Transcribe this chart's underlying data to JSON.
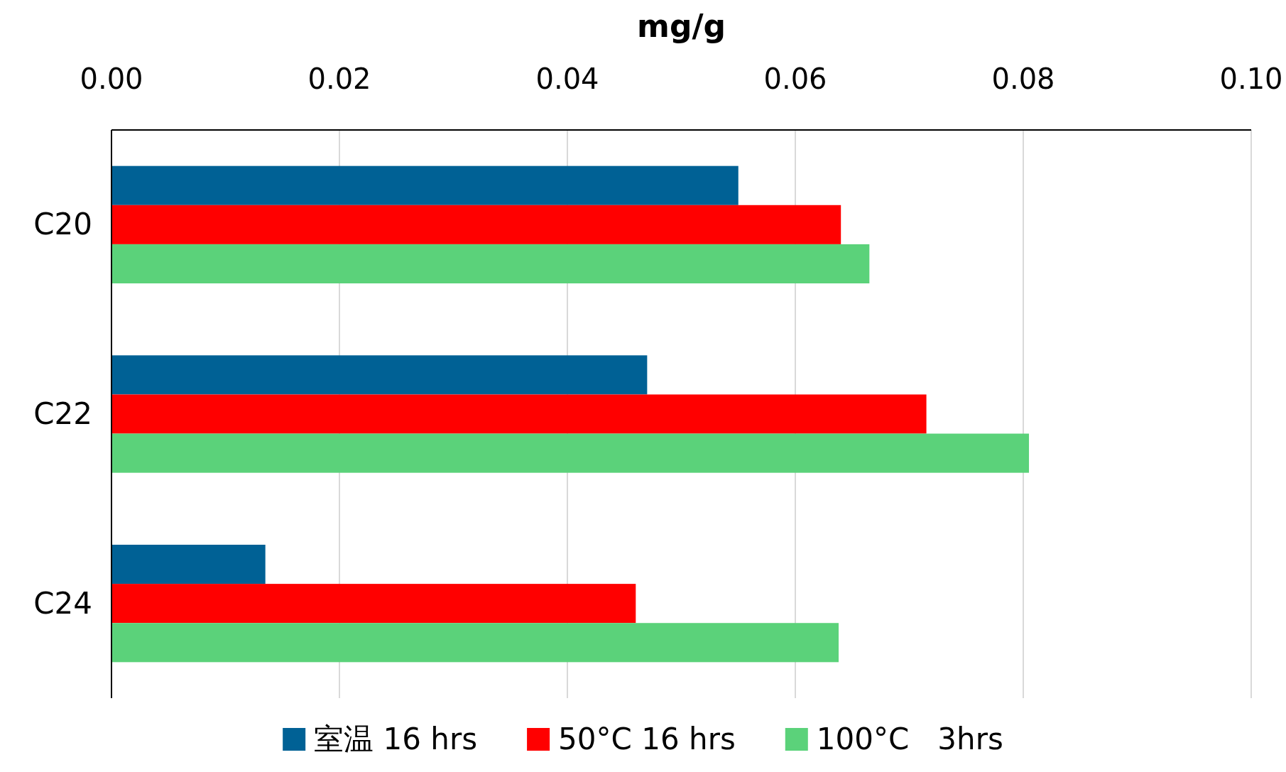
{
  "chart_data": {
    "type": "bar",
    "orientation": "horizontal",
    "xlabel": "mg/g",
    "categories": [
      "C20",
      "C22",
      "C24"
    ],
    "series": [
      {
        "name": "室温 16 hrs",
        "color": "#006195",
        "values": [
          0.055,
          0.047,
          0.0135
        ]
      },
      {
        "name": "50°C 16 hrs",
        "color": "#ff0000",
        "values": [
          0.064,
          0.0715,
          0.046
        ]
      },
      {
        "name": "100°C   3hrs",
        "color": "#5bd27a",
        "values": [
          0.0665,
          0.0805,
          0.0638
        ]
      }
    ],
    "xlim": [
      0,
      0.1
    ],
    "xticks": [
      {
        "value": 0,
        "label": "0.00"
      },
      {
        "value": 0.02,
        "label": "0.02"
      },
      {
        "value": 0.04,
        "label": "0.04"
      },
      {
        "value": 0.06,
        "label": "0.06"
      },
      {
        "value": 0.08,
        "label": "0.08"
      },
      {
        "value": 0.1,
        "label": "0.10"
      }
    ],
    "grid": "x",
    "legend": "bottom"
  }
}
